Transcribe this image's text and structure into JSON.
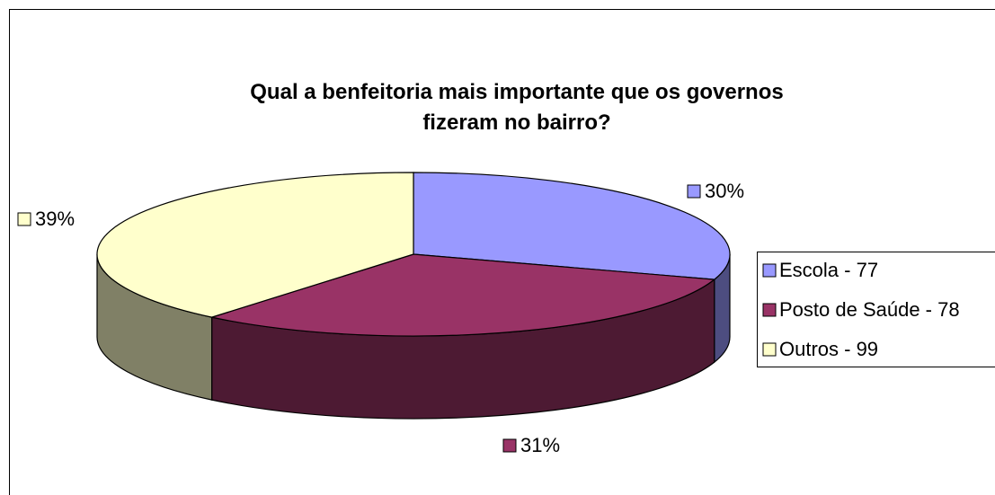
{
  "chart_data": {
    "type": "pie3d",
    "title": "Qual a benfeitoria mais importante que os governos fizeram no bairro?",
    "categories": [
      "Escola - 77",
      "Posto de Saúde - 78",
      "Outros - 99"
    ],
    "values": [
      30,
      31,
      39
    ],
    "value_labels": [
      "30%",
      "31%",
      "39%"
    ],
    "colors": [
      "#9999ff",
      "#993366",
      "#ffffcc"
    ],
    "legend": "right"
  }
}
